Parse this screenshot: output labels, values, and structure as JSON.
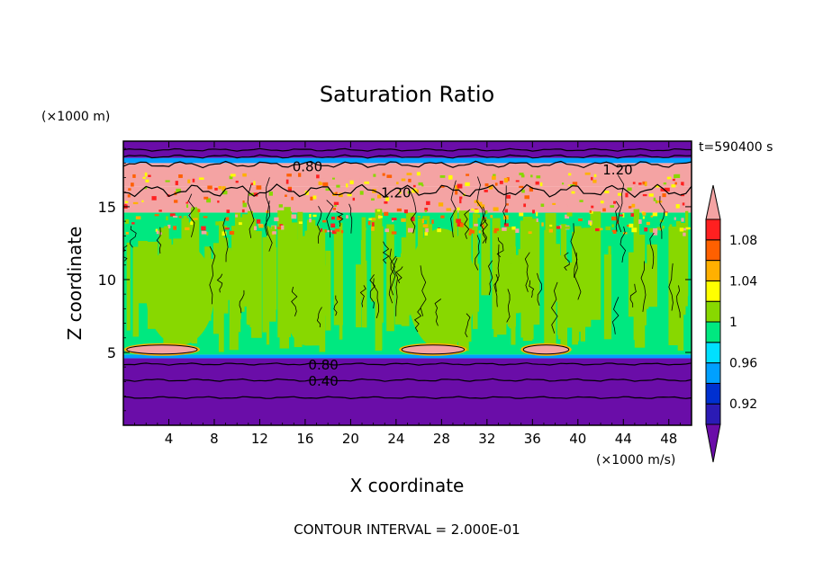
{
  "chart_data": {
    "type": "heatmap",
    "title": "Saturation Ratio",
    "xlabel": "X coordinate",
    "ylabel": "Z coordinate",
    "x_units": "(×1000 m/s)",
    "y_units": "(×1000 m)",
    "time_label": "t=590400 s",
    "footer": "CONTOUR INTERVAL = 2.000E-01",
    "xlim": [
      0,
      50
    ],
    "ylim": [
      0,
      19.5
    ],
    "x_ticks": [
      4,
      8,
      12,
      16,
      20,
      24,
      28,
      32,
      36,
      40,
      44,
      48
    ],
    "y_ticks": [
      5,
      10,
      15
    ],
    "contour_labels": [
      {
        "text": "0.80",
        "x": 16.2,
        "y": 17.8
      },
      {
        "text": "1.20",
        "x": 24.0,
        "y": 16.0
      },
      {
        "text": "1.20",
        "x": 43.5,
        "y": 17.6
      },
      {
        "text": "0.80",
        "x": 17.6,
        "y": 4.2
      },
      {
        "text": "0.40",
        "x": 17.6,
        "y": 3.1
      }
    ],
    "colorbar": {
      "levels": [
        0.9,
        0.92,
        0.94,
        0.96,
        0.98,
        1.0,
        1.02,
        1.04,
        1.06,
        1.08,
        1.1
      ],
      "colors": [
        "#6a0da8",
        "#2b1bb5",
        "#0030d0",
        "#00a0ff",
        "#00e0ff",
        "#00e880",
        "#88d800",
        "#ffff00",
        "#ffb000",
        "#ff6000",
        "#ff2020",
        "#f4a3a3"
      ],
      "tick_labels": [
        "0.92",
        "0.96",
        "1",
        "1.04",
        "1.08"
      ]
    }
  }
}
